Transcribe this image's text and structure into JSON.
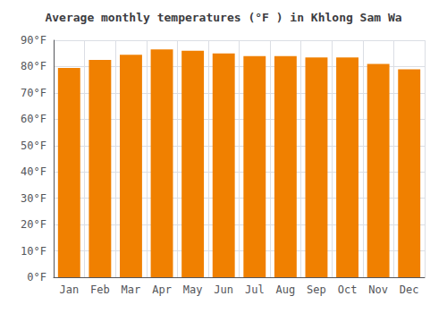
{
  "chart_data": {
    "type": "bar",
    "title": "Average monthly temperatures (°F ) in Khlong Sam Wa",
    "categories": [
      "Jan",
      "Feb",
      "Mar",
      "Apr",
      "May",
      "Jun",
      "Jul",
      "Aug",
      "Sep",
      "Oct",
      "Nov",
      "Dec"
    ],
    "values": [
      79.5,
      82.5,
      84.5,
      86.5,
      86.0,
      85.0,
      84.0,
      84.0,
      83.5,
      83.5,
      81.0,
      79.0
    ],
    "color": "#F08000",
    "ylim": [
      0,
      90
    ],
    "yticks": [
      {
        "value": 0,
        "label": "0°F"
      },
      {
        "value": 10,
        "label": "10°F"
      },
      {
        "value": 20,
        "label": "20°F"
      },
      {
        "value": 30,
        "label": "30°F"
      },
      {
        "value": 40,
        "label": "40°F"
      },
      {
        "value": 50,
        "label": "50°F"
      },
      {
        "value": 60,
        "label": "60°F"
      },
      {
        "value": 70,
        "label": "70°F"
      },
      {
        "value": 80,
        "label": "80°F"
      },
      {
        "value": 90,
        "label": "90°F"
      }
    ],
    "grid": true
  }
}
